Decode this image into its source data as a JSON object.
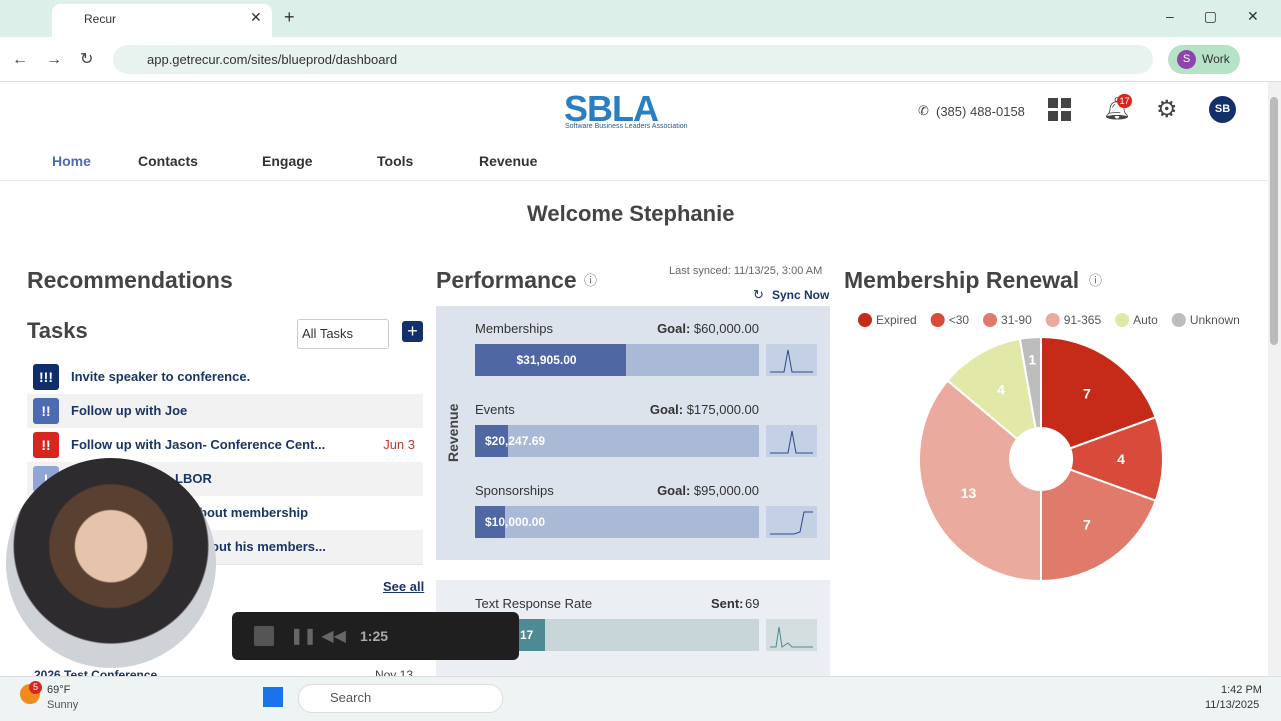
{
  "browser": {
    "tab_title": "Recur",
    "url": "app.getrecur.com/sites/blueprod/dashboard",
    "profile_initial": "S",
    "profile": "Work"
  },
  "header": {
    "logo": "SBLA",
    "logo_sub": "Software Business Leaders Association",
    "phone": "(385) 488-0158",
    "notifications": "17",
    "avatar": "SB"
  },
  "nav": [
    "Home",
    "Contacts",
    "Engage",
    "Tools",
    "Revenue"
  ],
  "welcome": "Welcome Stephanie",
  "recommendations": {
    "title": "Recommendations",
    "tasks_title": "Tasks",
    "filter": "All Tasks",
    "add": "+",
    "tasks": [
      {
        "priority": "!!!",
        "color": "#0f2d6b",
        "text": "Invite speaker to conference."
      },
      {
        "priority": "!!",
        "color": "#4d6bb0",
        "text": "Follow up with Joe"
      },
      {
        "priority": "!!",
        "color": "#d7261d",
        "text": "Follow up with Jason- Conference Cent...",
        "date": "Jun 3"
      },
      {
        "priority": "!",
        "color": "#8fa6d6",
        "text": "LBOR"
      },
      {
        "priority": "!",
        "color": "#8fa6d6",
        "text": "bout membership"
      },
      {
        "priority": "!",
        "color": "#8fa6d6",
        "text": "out his members..."
      }
    ],
    "see_all": "See all",
    "event": "2026 Test Conference",
    "event_date": "Nov 13"
  },
  "performance": {
    "title": "Performance",
    "last_synced": "Last synced: 11/13/25, 3:00 AM",
    "sync": "Sync Now",
    "axis_label": "Revenue",
    "goal_word": "Goal:",
    "metrics": [
      {
        "name": "Memberships",
        "goal": 60000,
        "goal_label": "$60,000.00",
        "value": 31905,
        "value_label": "$31,905.00"
      },
      {
        "name": "Events",
        "goal": 175000,
        "goal_label": "$175,000.00",
        "value": 20247.69,
        "value_label": "$20,247.69"
      },
      {
        "name": "Sponsorships",
        "goal": 95000,
        "goal_label": "$95,000.00",
        "value": 10000,
        "value_label": "$10,000.00"
      }
    ],
    "text_rate": {
      "name": "Text Response Rate",
      "sent_word": "Sent:",
      "sent": 69,
      "value": 17
    }
  },
  "chart_data": {
    "type": "pie",
    "title": "Membership Renewal",
    "categories": [
      "Expired",
      "<30",
      "31-90",
      "91-365",
      "Auto",
      "Unknown"
    ],
    "values": [
      7,
      4,
      7,
      13,
      4,
      1
    ],
    "colors": [
      "#c62b1a",
      "#d84b3a",
      "#e07a6a",
      "#eaaa9d",
      "#e1e8a8",
      "#bdbdbd"
    ]
  },
  "recording": {
    "time": "1:25"
  },
  "taskbar": {
    "temp": "69°F",
    "weather": "Sunny",
    "search": "Search",
    "time": "1:42 PM",
    "date": "11/13/2025",
    "badge": "5"
  }
}
